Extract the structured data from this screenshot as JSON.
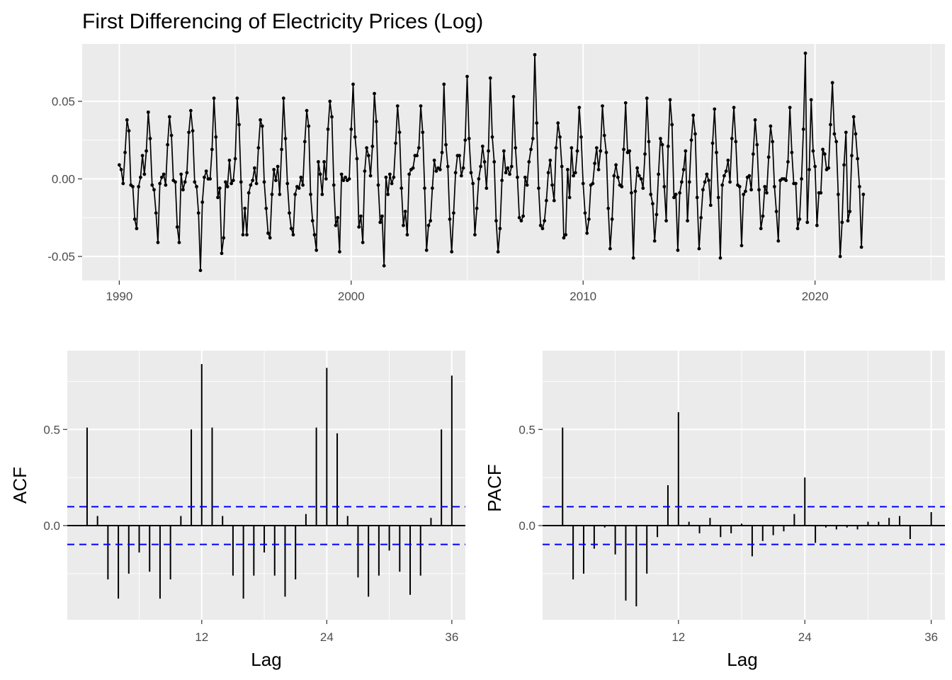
{
  "chart_data": [
    {
      "id": "ts",
      "type": "line",
      "title": "First Differencing of Electricity Prices (Log)",
      "xlabel": "",
      "ylabel": "",
      "x_start": 1990.0,
      "x_step": 0.08333333,
      "xlim": [
        1988.4,
        2025.6
      ],
      "ylim": [
        -0.0655,
        0.087
      ],
      "x_ticks": [
        1990,
        2000,
        2010,
        2020
      ],
      "y_ticks": [
        -0.05,
        0.0,
        0.05
      ],
      "y_tick_labels": [
        "-0.05",
        "0.00",
        "0.05"
      ],
      "grid": true,
      "series": [
        {
          "values": [
            0.009,
            0.006,
            -0.003,
            0.017,
            0.038,
            0.031,
            -0.004,
            -0.005,
            -0.026,
            -0.032,
            -0.005,
            0.001,
            0.015,
            0.003,
            0.018,
            0.043,
            0.026,
            -0.004,
            -0.007,
            -0.022,
            -0.041,
            -0.003,
            0.001,
            0.003,
            -0.004,
            0.022,
            0.04,
            0.028,
            -0.001,
            -0.002,
            -0.031,
            -0.041,
            0.003,
            -0.007,
            -0.002,
            0.004,
            0.03,
            0.044,
            0.031,
            -0.002,
            -0.005,
            -0.022,
            -0.059,
            -0.015,
            0.001,
            0.005,
            0.0,
            0.0,
            0.019,
            0.052,
            0.027,
            -0.012,
            -0.006,
            -0.048,
            -0.038,
            -0.002,
            -0.005,
            0.012,
            -0.003,
            -0.001,
            0.013,
            0.052,
            0.035,
            -0.002,
            -0.036,
            -0.019,
            -0.036,
            -0.009,
            -0.004,
            -0.001,
            0.007,
            -0.003,
            0.02,
            0.038,
            0.034,
            -0.002,
            -0.019,
            -0.035,
            -0.038,
            -0.01,
            0.006,
            -0.001,
            0.008,
            -0.01,
            0.019,
            0.052,
            0.026,
            -0.003,
            -0.022,
            -0.032,
            -0.036,
            -0.01,
            -0.005,
            -0.006,
            0.001,
            -0.004,
            0.024,
            0.044,
            0.034,
            -0.01,
            -0.027,
            -0.036,
            -0.046,
            0.011,
            0.003,
            -0.01,
            0.011,
            0.0,
            0.032,
            0.05,
            0.04,
            -0.004,
            -0.03,
            -0.025,
            -0.047,
            0.003,
            -0.001,
            0.001,
            -0.001,
            0.0,
            0.032,
            0.061,
            0.027,
            0.013,
            -0.031,
            -0.024,
            -0.041,
            0.005,
            0.02,
            0.015,
            0.002,
            0.021,
            0.055,
            0.037,
            -0.004,
            -0.028,
            -0.024,
            -0.056,
            0.001,
            -0.01,
            0.003,
            -0.003,
            0.001,
            0.023,
            0.047,
            0.03,
            -0.006,
            -0.03,
            -0.021,
            -0.036,
            0.003,
            0.006,
            0.007,
            0.015,
            0.015,
            0.02,
            0.047,
            0.03,
            -0.006,
            -0.046,
            -0.03,
            -0.027,
            -0.006,
            0.012,
            0.005,
            0.007,
            0.006,
            0.017,
            0.061,
            0.022,
            0.008,
            -0.026,
            -0.047,
            -0.022,
            0.004,
            0.015,
            0.015,
            0.002,
            0.007,
            0.025,
            0.066,
            0.026,
            0.004,
            -0.003,
            -0.036,
            -0.019,
            0.0,
            0.008,
            0.021,
            0.011,
            -0.006,
            0.018,
            0.065,
            0.027,
            0.011,
            -0.027,
            -0.047,
            -0.032,
            -0.001,
            0.018,
            0.004,
            0.007,
            0.003,
            0.008,
            0.053,
            0.02,
            0.001,
            -0.025,
            -0.027,
            -0.024,
            0.001,
            -0.004,
            0.011,
            0.019,
            0.026,
            0.08,
            0.036,
            -0.006,
            -0.03,
            -0.032,
            -0.027,
            -0.014,
            0.004,
            0.012,
            -0.004,
            -0.014,
            0.02,
            0.036,
            0.027,
            0.008,
            -0.038,
            -0.036,
            0.006,
            -0.012,
            0.02,
            0.002,
            0.004,
            0.018,
            0.046,
            0.027,
            -0.003,
            -0.022,
            -0.035,
            -0.026,
            -0.004,
            -0.003,
            0.01,
            0.02,
            0.006,
            0.018,
            0.047,
            0.028,
            0.017,
            -0.019,
            -0.045,
            -0.026,
            0.002,
            0.009,
            0.001,
            -0.004,
            -0.005,
            0.019,
            0.049,
            0.017,
            0.018,
            -0.009,
            -0.051,
            -0.008,
            0.007,
            0.002,
            0.0,
            -0.006,
            0.016,
            0.052,
            0.024,
            -0.01,
            -0.016,
            -0.04,
            -0.023,
            0.003,
            0.026,
            0.022,
            -0.005,
            -0.027,
            0.021,
            0.051,
            0.035,
            -0.012,
            -0.01,
            -0.046,
            -0.009,
            -0.002,
            0.006,
            0.018,
            -0.027,
            -0.002,
            0.025,
            0.041,
            0.029,
            -0.012,
            -0.045,
            -0.025,
            -0.007,
            -0.002,
            0.003,
            -0.001,
            -0.017,
            0.023,
            0.045,
            0.017,
            -0.012,
            -0.051,
            -0.004,
            0.002,
            0.005,
            0.012,
            -0.002,
            0.026,
            0.046,
            0.024,
            -0.004,
            -0.005,
            -0.043,
            -0.01,
            -0.008,
            0.001,
            0.002,
            -0.007,
            0.016,
            0.038,
            0.022,
            -0.007,
            -0.032,
            -0.024,
            -0.005,
            -0.009,
            0.014,
            0.034,
            0.024,
            -0.005,
            -0.021,
            -0.04,
            -0.001,
            0.0,
            0.0,
            -0.001,
            0.011,
            0.046,
            0.017,
            -0.003,
            -0.003,
            -0.032,
            -0.026,
            0.0,
            0.032,
            0.081,
            -0.028,
            0.006,
            0.051,
            0.018,
            0.008,
            -0.03,
            -0.009,
            -0.009,
            0.019,
            0.016,
            0.006,
            0.007,
            0.035,
            0.062,
            0.029,
            0.024,
            -0.01,
            -0.05,
            -0.028,
            0.009,
            0.03,
            -0.027,
            -0.021,
            0.015,
            0.04,
            0.029,
            0.013,
            -0.005,
            -0.044,
            -0.01
          ]
        }
      ]
    },
    {
      "id": "acf",
      "type": "bar",
      "title": "",
      "xlabel": "Lag",
      "ylabel": "ACF",
      "lags": [
        1,
        2,
        3,
        4,
        5,
        6,
        7,
        8,
        9,
        10,
        11,
        12,
        13,
        14,
        15,
        16,
        17,
        18,
        19,
        20,
        21,
        22,
        23,
        24,
        25,
        26,
        27,
        28,
        29,
        30,
        31,
        32,
        33,
        34,
        35,
        36
      ],
      "values": [
        0.51,
        0.05,
        -0.28,
        -0.38,
        -0.25,
        -0.14,
        -0.24,
        -0.38,
        -0.28,
        0.05,
        0.5,
        0.84,
        0.51,
        0.05,
        -0.26,
        -0.38,
        -0.26,
        -0.14,
        -0.26,
        -0.37,
        -0.28,
        0.06,
        0.51,
        0.82,
        0.48,
        0.05,
        -0.27,
        -0.37,
        -0.26,
        -0.13,
        -0.24,
        -0.36,
        -0.26,
        0.04,
        0.5,
        0.78
      ],
      "ci": [
        0.098,
        -0.098
      ],
      "xlim": [
        -0.9,
        37.3
      ],
      "ylim": [
        -0.49,
        0.91
      ],
      "x_ticks": [
        12,
        24,
        36
      ],
      "y_ticks": [
        0.0,
        0.5
      ],
      "y_tick_labels": [
        "0.0",
        "0.5"
      ],
      "grid": true
    },
    {
      "id": "pacf",
      "type": "bar",
      "title": "",
      "xlabel": "Lag",
      "ylabel": "PACF",
      "lags": [
        1,
        2,
        3,
        4,
        5,
        6,
        7,
        8,
        9,
        10,
        11,
        12,
        13,
        14,
        15,
        16,
        17,
        18,
        19,
        20,
        21,
        22,
        23,
        24,
        25,
        26,
        27,
        28,
        29,
        30,
        31,
        32,
        33,
        34,
        35,
        36
      ],
      "values": [
        0.51,
        -0.28,
        -0.25,
        -0.12,
        -0.01,
        -0.15,
        -0.39,
        -0.42,
        -0.25,
        -0.06,
        0.21,
        0.59,
        0.02,
        -0.04,
        0.04,
        -0.06,
        -0.04,
        0.01,
        -0.16,
        -0.08,
        -0.05,
        -0.03,
        0.06,
        0.25,
        -0.09,
        -0.01,
        -0.02,
        -0.01,
        -0.02,
        0.02,
        0.02,
        0.04,
        0.05,
        -0.07,
        0.0,
        0.07
      ],
      "ci": [
        0.098,
        -0.098
      ],
      "xlim": [
        -0.9,
        37.3
      ],
      "ylim": [
        -0.49,
        0.91
      ],
      "x_ticks": [
        12,
        24,
        36
      ],
      "y_ticks": [
        0.0,
        0.5
      ],
      "y_tick_labels": [
        "0.0",
        "0.5"
      ],
      "grid": true
    }
  ],
  "colors": {
    "panel_background": "#ebebeb",
    "grid_major": "#ffffff",
    "series": "#000000",
    "confidence_band": "#0000ff",
    "tick_label": "#4d4d4d"
  }
}
